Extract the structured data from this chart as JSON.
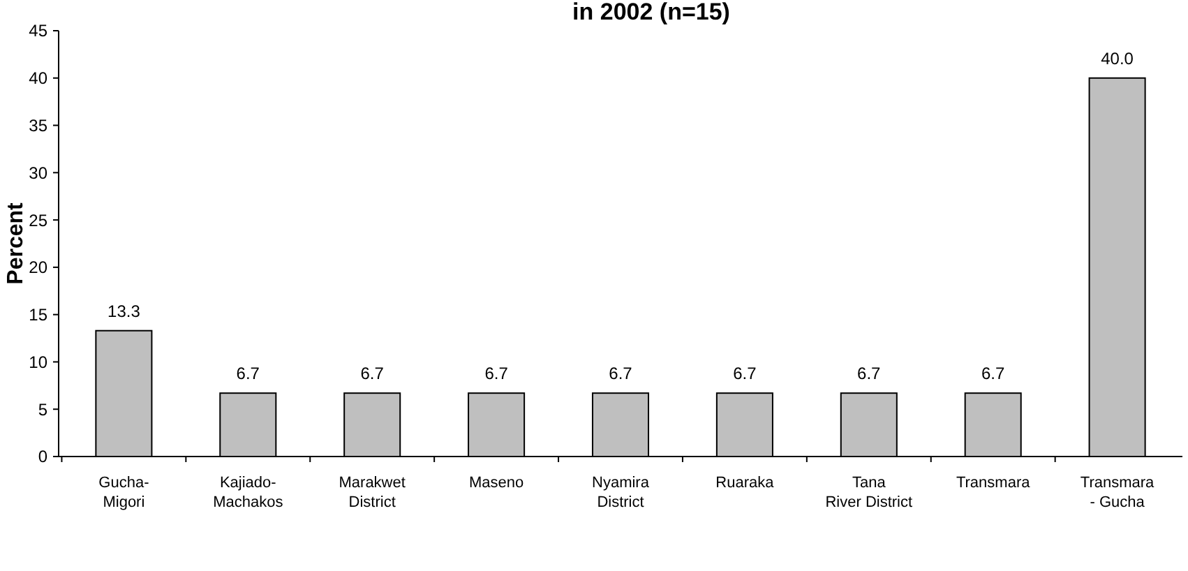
{
  "chart_data": {
    "type": "bar",
    "title": "in 2002 (n=15)",
    "ylabel": "Percent",
    "categories": [
      "Gucha-Migori",
      "Kajiado-Machakos",
      "Marakwet District",
      "Maseno",
      "Nyamira District",
      "Ruaraka",
      "Tana River District",
      "Transmara",
      "Transmara - Gucha"
    ],
    "values": [
      13.3,
      6.7,
      6.7,
      6.7,
      6.7,
      6.7,
      6.7,
      6.7,
      40.0
    ],
    "value_labels": [
      "13.3",
      "6.7",
      "6.7",
      "6.7",
      "6.7",
      "6.7",
      "6.7",
      "6.7",
      "40.0"
    ],
    "color": "#bfbfbf",
    "ylim": [
      0,
      45
    ],
    "yticks": [
      0,
      5,
      10,
      15,
      20,
      25,
      30,
      35,
      40,
      45
    ],
    "grid": false
  }
}
